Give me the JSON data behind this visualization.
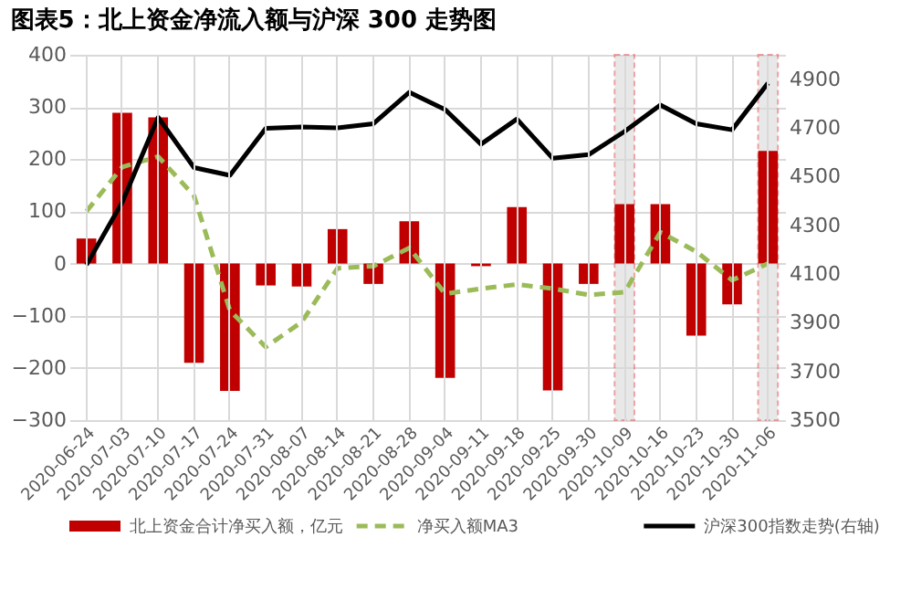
{
  "chart_data": {
    "type": "bar",
    "title": "图表5：北上资金净流入额与沪深 300 走势图",
    "categories": [
      "2020-06-24",
      "2020-07-03",
      "2020-07-10",
      "2020-07-17",
      "2020-07-24",
      "2020-07-31",
      "2020-08-07",
      "2020-08-14",
      "2020-08-21",
      "2020-08-28",
      "2020-09-04",
      "2020-09-11",
      "2020-09-18",
      "2020-09-25",
      "2020-09-30",
      "2020-10-09",
      "2020-10-16",
      "2020-10-23",
      "2020-10-30",
      "2020-11-06"
    ],
    "series": [
      {
        "name": "北上资金合计净买入额，亿元",
        "type": "bar",
        "color": "#c00000",
        "values": [
          48,
          289,
          280,
          -190,
          -244,
          -42,
          -44,
          66,
          -39,
          81,
          -219,
          -5,
          108,
          -243,
          -39,
          114,
          114,
          -138,
          -78,
          216
        ]
      },
      {
        "name": "净买入额MA3",
        "type": "line",
        "line_style": "dashed",
        "color": "#9bbb59",
        "values": [
          100,
          185,
          205,
          130,
          -90,
          -160,
          -112,
          -9,
          -5,
          30,
          -58,
          -48,
          -40,
          -48,
          -60,
          -55,
          60,
          23,
          -32,
          0
        ]
      },
      {
        "name": "沪深300指数走势(右轴)",
        "type": "line",
        "line_style": "solid",
        "axis": "y2",
        "color": "#000000",
        "values": [
          4137,
          4395,
          4743,
          4537,
          4505,
          4698,
          4704,
          4700,
          4717,
          4846,
          4775,
          4633,
          4736,
          4575,
          4590,
          4685,
          4794,
          4717,
          4692,
          4884
        ]
      }
    ],
    "ylim": [
      -300,
      400
    ],
    "yticks": [
      -300,
      -200,
      -100,
      0,
      100,
      200,
      300,
      400
    ],
    "y2lim": [
      3500,
      5000
    ],
    "y2ticks": [
      3500,
      3700,
      3900,
      4100,
      4300,
      4500,
      4700,
      4900
    ],
    "bands": [
      {
        "axis": "x",
        "from": "2020-10-09",
        "to": "2020-10-09",
        "color": "#d9d9d9"
      },
      {
        "axis": "x",
        "from": "2020-11-06",
        "to": "2020-11-06",
        "color": "#d9d9d9"
      }
    ],
    "grid": true,
    "legend": "bottom",
    "marker": "none"
  }
}
